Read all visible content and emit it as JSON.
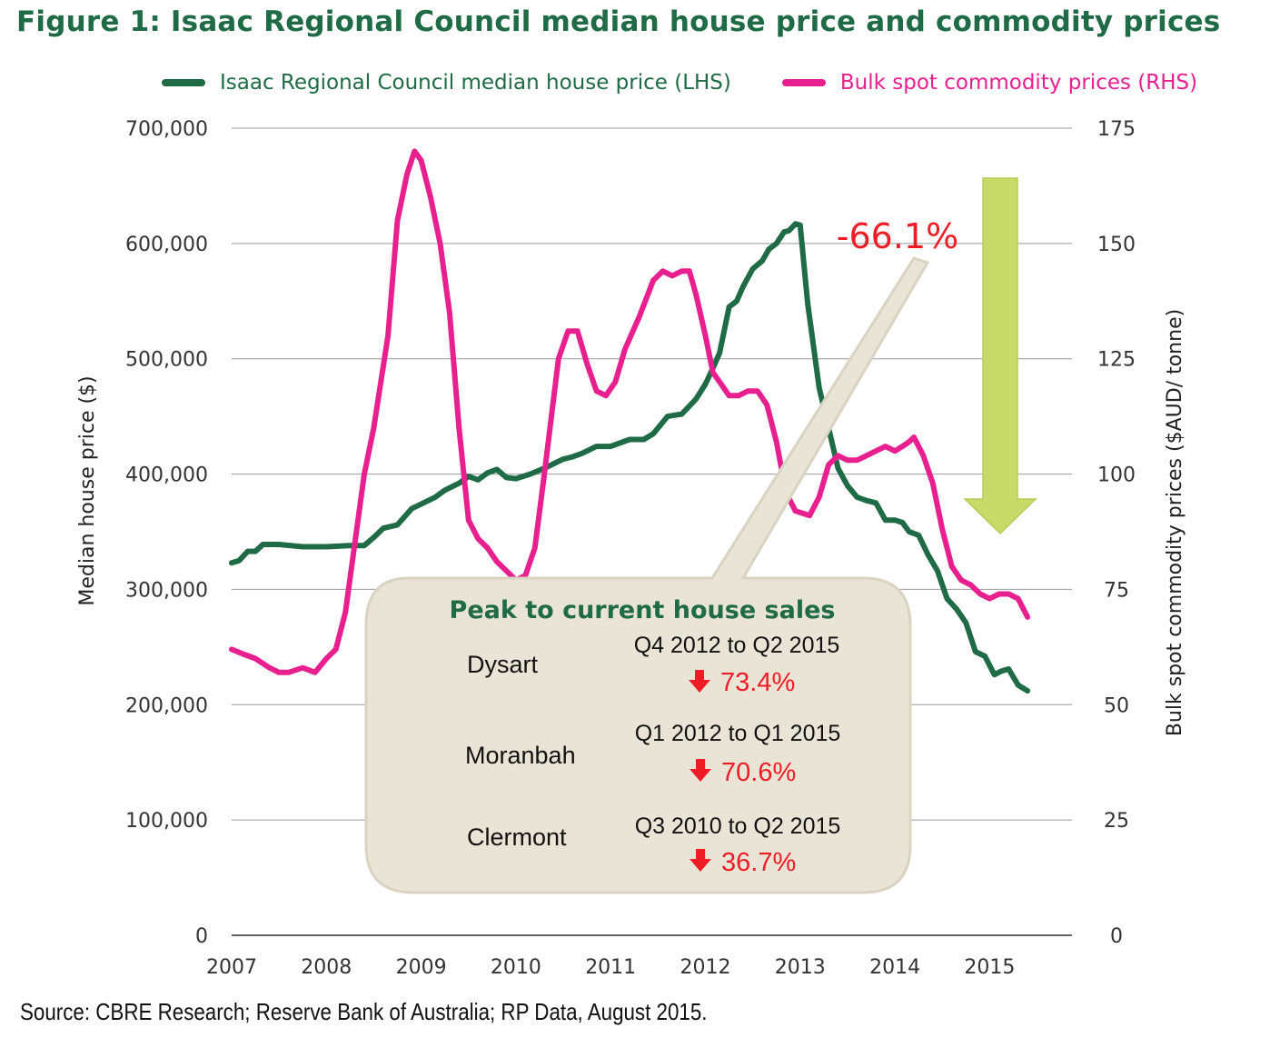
{
  "figure": {
    "title": "Figure 1: Isaac Regional Council median house price and commodity prices",
    "source": "Source: CBRE Research; Reserve Bank of Australia; RP Data, August 2015."
  },
  "colors": {
    "house": "#1e6b45",
    "commodity": "#e8208f",
    "annotation_red": "#ee1c25",
    "callout_fill": "#e9e4d6",
    "callout_stroke": "#d9d3c2",
    "arrow_fill": "#c8da6a",
    "gridline": "#9a9a9a"
  },
  "chart_data": {
    "type": "line",
    "title": "Figure 1: Isaac Regional Council median house price and commodity prices",
    "xlabel": "",
    "ylabel_left": "Median house price ($)",
    "ylabel_right": "Bulk spot commodity prices ($AUD/ tonne)",
    "x_ticks": [
      "2007",
      "2008",
      "2009",
      "2010",
      "2011",
      "2012",
      "2013",
      "2014",
      "2015"
    ],
    "x_tick_values": [
      2007,
      2008,
      2009,
      2010,
      2011,
      2012,
      2013,
      2014,
      2015
    ],
    "xlim": [
      2007,
      2015.9
    ],
    "y_left_ticks": [
      "0",
      "100,000",
      "200,000",
      "300,000",
      "400,000",
      "500,000",
      "600,000",
      "700,000"
    ],
    "y_left_tick_values": [
      0,
      100000,
      200000,
      300000,
      400000,
      500000,
      600000,
      700000
    ],
    "ylim_left": [
      0,
      700000
    ],
    "y_right_ticks": [
      "0",
      "25",
      "50",
      "75",
      "100",
      "125",
      "150",
      "175"
    ],
    "y_right_tick_values": [
      0,
      25,
      50,
      75,
      100,
      125,
      150,
      175
    ],
    "ylim_right": [
      0,
      175
    ],
    "grid": true,
    "legend_position": "top",
    "series": [
      {
        "name": "Isaac Regional Council median house price (LHS)",
        "axis": "left",
        "x": [
          2007.0,
          2007.08,
          2007.17,
          2007.25,
          2007.33,
          2007.5,
          2007.75,
          2008.0,
          2008.25,
          2008.4,
          2008.5,
          2008.6,
          2008.75,
          2008.9,
          2009.0,
          2009.15,
          2009.25,
          2009.4,
          2009.5,
          2009.6,
          2009.7,
          2009.8,
          2009.9,
          2010.0,
          2010.15,
          2010.3,
          2010.5,
          2010.6,
          2010.7,
          2010.85,
          2011.0,
          2011.2,
          2011.35,
          2011.45,
          2011.6,
          2011.75,
          2011.9,
          2012.0,
          2012.08,
          2012.15,
          2012.25,
          2012.33,
          2012.4,
          2012.5,
          2012.6,
          2012.67,
          2012.75,
          2012.83,
          2012.88,
          2012.95,
          2013.0,
          2013.08,
          2013.2,
          2013.3,
          2013.4,
          2013.5,
          2013.6,
          2013.7,
          2013.8,
          2013.9,
          2014.0,
          2014.08,
          2014.15,
          2014.25,
          2014.35,
          2014.45,
          2014.55,
          2014.65,
          2014.75,
          2014.85,
          2014.95,
          2015.05,
          2015.12,
          2015.2,
          2015.3,
          2015.4
        ],
        "values": [
          323000,
          325000,
          333000,
          333000,
          339000,
          339000,
          337000,
          337000,
          338000,
          338000,
          345000,
          353000,
          356000,
          370000,
          374000,
          380000,
          386000,
          392000,
          398000,
          395000,
          401000,
          404000,
          397000,
          396000,
          400000,
          405000,
          413000,
          415000,
          418000,
          424000,
          424000,
          430000,
          430000,
          435000,
          450000,
          452000,
          465000,
          478000,
          492000,
          505000,
          545000,
          550000,
          563000,
          578000,
          585000,
          595000,
          600000,
          610000,
          611000,
          617000,
          616000,
          548000,
          475000,
          440000,
          405000,
          390000,
          380000,
          377000,
          375000,
          360000,
          360000,
          358000,
          350000,
          347000,
          330000,
          316000,
          292000,
          283000,
          271000,
          246000,
          242000,
          226000,
          229000,
          231000,
          217000,
          212000
        ]
      },
      {
        "name": "Bulk spot commodity prices (RHS)",
        "axis": "right",
        "x": [
          2007.0,
          2007.12,
          2007.25,
          2007.4,
          2007.5,
          2007.6,
          2007.75,
          2007.88,
          2008.0,
          2008.1,
          2008.2,
          2008.3,
          2008.4,
          2008.5,
          2008.65,
          2008.75,
          2008.85,
          2008.93,
          2009.0,
          2009.1,
          2009.2,
          2009.3,
          2009.4,
          2009.5,
          2009.6,
          2009.7,
          2009.8,
          2009.9,
          2010.0,
          2010.1,
          2010.2,
          2010.3,
          2010.45,
          2010.55,
          2010.65,
          2010.75,
          2010.85,
          2010.95,
          2011.05,
          2011.15,
          2011.3,
          2011.45,
          2011.55,
          2011.65,
          2011.75,
          2011.83,
          2011.9,
          2012.0,
          2012.08,
          2012.15,
          2012.25,
          2012.35,
          2012.45,
          2012.55,
          2012.65,
          2012.75,
          2012.85,
          2012.95,
          2013.1,
          2013.2,
          2013.3,
          2013.4,
          2013.5,
          2013.6,
          2013.7,
          2013.8,
          2013.9,
          2014.0,
          2014.08,
          2014.15,
          2014.2,
          2014.3,
          2014.4,
          2014.5,
          2014.6,
          2014.7,
          2014.8,
          2014.9,
          2015.0,
          2015.1,
          2015.2,
          2015.3,
          2015.4
        ],
        "values": [
          62,
          61,
          60,
          58,
          57,
          57,
          58,
          57,
          60,
          62,
          70,
          85,
          100,
          110,
          130,
          155,
          165,
          170,
          168,
          160,
          150,
          135,
          110,
          90,
          86,
          84,
          81,
          79,
          77,
          78,
          84,
          100,
          125,
          131,
          131,
          124,
          118,
          117,
          120,
          127,
          134,
          142,
          144,
          143,
          144,
          144,
          139,
          130,
          122,
          120,
          117,
          117,
          118,
          118,
          115,
          107,
          96,
          92,
          91,
          95,
          102,
          104,
          103,
          103,
          104,
          105,
          106,
          105,
          106,
          107,
          108,
          104,
          98,
          88,
          80,
          77,
          76,
          74,
          73,
          74,
          74,
          73,
          69
        ]
      }
    ],
    "annotations": [
      {
        "text": "-66.1%",
        "x": 2013.55,
        "y_left": 597000
      }
    ],
    "callout": {
      "title": "Peak to current house sales",
      "rows": [
        {
          "name": "Dysart",
          "period": "Q4 2012 to Q2 2015",
          "change": "73.4%"
        },
        {
          "name": "Moranbah",
          "period": "Q1 2012 to Q1 2015",
          "change": "70.6%"
        },
        {
          "name": "Clermont",
          "period": "Q3 2010 to Q2 2015",
          "change": "36.7%"
        }
      ]
    }
  }
}
